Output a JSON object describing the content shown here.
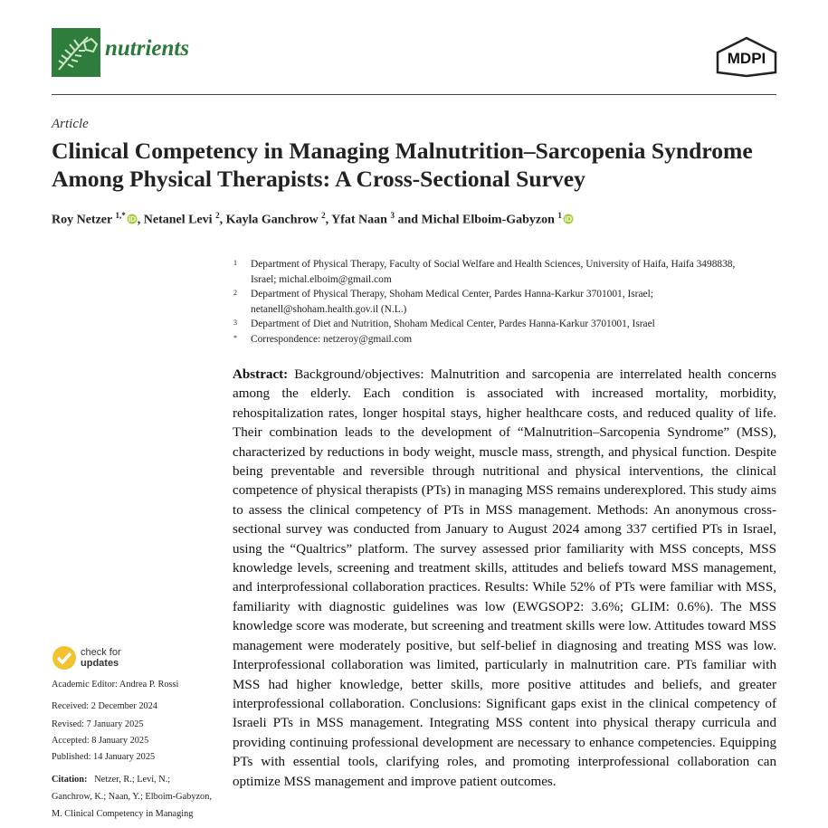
{
  "header": {
    "journal": "nutrients",
    "publisher": "MDPI"
  },
  "article": {
    "type": "Article",
    "title": "Clinical Competency in Managing Malnutrition–Sarcopenia Syndrome Among Physical Therapists: A Cross-Sectional Survey",
    "authors": [
      {
        "name": "Roy Netzer",
        "sup": "1,*"
      },
      {
        "name": "Netanel Levi",
        "sup": "2"
      },
      {
        "name": "Kayla Ganchrow",
        "sup": "2"
      },
      {
        "name": "Yfat Naan",
        "sup": "3"
      },
      {
        "name": "Michal Elboim-Gabyzon",
        "sup": "1"
      }
    ],
    "author_conjunction": "and",
    "affiliations": [
      {
        "marker": "1",
        "text": "Department of Physical Therapy, Faculty of Social Welfare and Health Sciences, University of Haifa, Haifa 3498838, Israel; michal.elboim@gmail.com"
      },
      {
        "marker": "2",
        "text": "Department of Physical Therapy, Shoham Medical Center, Pardes Hanna-Karkur 3701001, Israel; netanell@shoham.health.gov.il (N.L.)"
      },
      {
        "marker": "3",
        "text": "Department of Diet and Nutrition, Shoham Medical Center, Pardes Hanna-Karkur 3701001, Israel"
      },
      {
        "marker": "*",
        "text": "Correspondence: netzeroy@gmail.com"
      }
    ]
  },
  "abstract": {
    "label": "Abstract:",
    "text": "Background/objectives: Malnutrition and sarcopenia are interrelated health concerns among the elderly. Each condition is associated with increased mortality, morbidity, rehospitalization rates, longer hospital stays, higher healthcare costs, and reduced quality of life. Their combination leads to the development of “Malnutrition–Sarcopenia Syndrome” (MSS), characterized by reductions in body weight, muscle mass, strength, and physical function. Despite being preventable and reversible through nutritional and physical interventions, the clinical competence of physical therapists (PTs) in managing MSS remains underexplored. This study aims to assess the clinical competency of PTs in MSS management. Methods: An anonymous cross-sectional survey was conducted from January to August 2024 among 337 certified PTs in Israel, using the “Qualtrics” platform. The survey assessed prior familiarity with MSS concepts, MSS knowledge levels, screening and treatment skills, attitudes and beliefs toward MSS management, and interprofessional collaboration practices. Results: While 52% of PTs were familiar with MSS, familiarity with diagnostic guidelines was low (EWGSOP2: 3.6%; GLIM: 0.6%). The MSS knowledge score was moderate, but screening and treatment skills were low. Attitudes toward MSS management were moderately positive, but self-belief in diagnosing and treating MSS was low. Interprofessional collaboration was limited, particularly in malnutrition care. PTs familiar with MSS had higher knowledge, better skills, more positive attitudes and beliefs, and greater interprofessional collaboration. Conclusions: Significant gaps exist in the clinical competency of Israeli PTs in MSS management. Integrating MSS content into physical therapy curricula and providing continuing professional development are necessary to enhance competencies. Equipping PTs with essential tools, clarifying roles, and promoting interprofessional collaboration can optimize MSS management and improve patient outcomes."
  },
  "sidebar": {
    "check_for": "check for",
    "updates": "updates",
    "academic_editor": "Academic Editor: Andrea P. Rossi",
    "dates": [
      "Received: 2 December 2024",
      "Revised: 7 January 2025",
      "Accepted: 8 January 2025",
      "Published: 14 January 2025"
    ],
    "citation_label": "Citation:",
    "citation_text": "Netzer, R.; Levi, N.; Ganchrow, K.; Naan, Y.; Elboim-Gabyzon, M. Clinical Competency in Managing"
  }
}
